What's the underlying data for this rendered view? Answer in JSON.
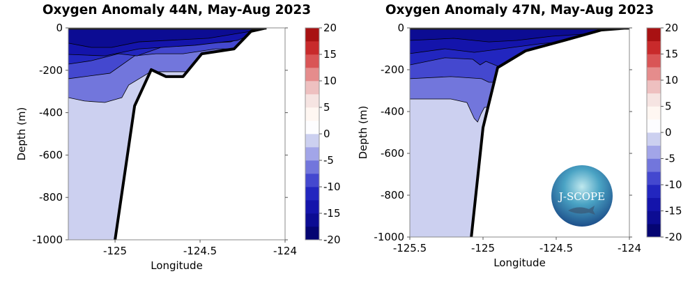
{
  "chart_data": [
    {
      "type": "contour",
      "title": "Oxygen Anomaly 44N, May-Aug 2023",
      "xlabel": "Longitude",
      "ylabel": "Depth (m)",
      "xlim": [
        -125.275,
        -124
      ],
      "ylim": [
        -1000,
        0
      ],
      "xticks": [
        -125,
        -124.5,
        -124
      ],
      "xtick_labels": [
        "-125",
        "-124.5",
        "-124"
      ],
      "yticks": [
        0,
        -200,
        -400,
        -600,
        -800,
        -1000
      ],
      "ytick_labels": [
        "0",
        "-200",
        "-400",
        "-600",
        "-800",
        "-1000"
      ],
      "bottom": [
        [
          -125.0,
          -1000
        ],
        [
          -124.885,
          -368
        ],
        [
          -124.787,
          -197
        ],
        [
          -124.7,
          -230
        ],
        [
          -124.6,
          -230
        ],
        [
          -124.49,
          -122
        ],
        [
          -124.3,
          -99
        ],
        [
          -124.2,
          -16
        ],
        [
          -124.11,
          0
        ]
      ],
      "bands": [
        {
          "range": [
            -5,
            -2.5
          ],
          "boundary": [
            [
              -125.275,
              -1000
            ],
            [
              -124.0,
              -1000
            ]
          ]
        },
        {
          "range": [
            -7.5,
            -5
          ],
          "boundary": [
            [
              -125.275,
              -329
            ],
            [
              -125.18,
              -345
            ],
            [
              -125.06,
              -352
            ],
            [
              -124.96,
              -329
            ],
            [
              -124.92,
              -270
            ],
            [
              -124.79,
              -207
            ],
            [
              -124.0,
              -207
            ]
          ]
        },
        {
          "range": [
            -10,
            -7.5
          ],
          "boundary": [
            [
              -125.275,
              -240
            ],
            [
              -125.03,
              -214
            ],
            [
              -124.885,
              -132
            ],
            [
              -124.76,
              -122
            ],
            [
              -124.6,
              -122
            ],
            [
              -124.49,
              -109
            ],
            [
              -124.41,
              -99
            ],
            [
              -124.0,
              -99
            ]
          ]
        },
        {
          "range": [
            -12.5,
            -10
          ],
          "boundary": [
            [
              -125.275,
              -171
            ],
            [
              -125.14,
              -155
            ],
            [
              -124.98,
              -122
            ],
            [
              -124.87,
              -132
            ],
            [
              -124.73,
              -92
            ],
            [
              -124.56,
              -76
            ],
            [
              -124.32,
              -66
            ],
            [
              -124.2,
              -33
            ],
            [
              -124.0,
              -33
            ]
          ]
        },
        {
          "range": [
            -15,
            -12.5
          ],
          "boundary": [
            [
              -125.275,
              -125
            ],
            [
              -125.06,
              -132
            ],
            [
              -124.86,
              -99
            ],
            [
              -124.53,
              -82
            ],
            [
              -124.28,
              -59
            ],
            [
              -124.16,
              -16
            ],
            [
              -124.0,
              -16
            ]
          ]
        },
        {
          "range": [
            -17.5,
            -15
          ],
          "boundary": [
            [
              -125.275,
              -72
            ],
            [
              -125.14,
              -92
            ],
            [
              -125.02,
              -92
            ],
            [
              -124.86,
              -66
            ],
            [
              -124.45,
              -49
            ],
            [
              -124.2,
              -16
            ],
            [
              -124.0,
              -16
            ]
          ]
        }
      ]
    },
    {
      "type": "contour",
      "title": "Oxygen Anomaly 47N, May-Aug 2023",
      "xlabel": "Longitude",
      "ylabel": "Depth (m)",
      "xlim": [
        -125.5,
        -124
      ],
      "ylim": [
        -1000,
        0
      ],
      "xticks": [
        -125.5,
        -125,
        -124.5,
        -124
      ],
      "xtick_labels": [
        "-125.5",
        "-125",
        "-124.5",
        "-124"
      ],
      "yticks": [
        0,
        -200,
        -400,
        -600,
        -800,
        -1000
      ],
      "ytick_labels": [
        "0",
        "-200",
        "-400",
        "-600",
        "-800",
        "-1000"
      ],
      "bottom": [
        [
          -125.08,
          -1000
        ],
        [
          -125.0,
          -477
        ],
        [
          -124.9,
          -190
        ],
        [
          -124.71,
          -110
        ],
        [
          -124.43,
          -57
        ],
        [
          -124.19,
          -10
        ],
        [
          -124.0,
          0
        ]
      ],
      "bands": [
        {
          "range": [
            -5,
            -2.5
          ],
          "boundary": [
            [
              -125.5,
              -1000
            ],
            [
              -124.0,
              -1000
            ]
          ]
        },
        {
          "range": [
            -7.5,
            -5
          ],
          "boundary": [
            [
              -125.5,
              -340
            ],
            [
              -125.22,
              -340
            ],
            [
              -125.11,
              -357
            ],
            [
              -125.06,
              -433
            ],
            [
              -125.037,
              -450
            ],
            [
              -125.013,
              -410
            ],
            [
              -124.99,
              -380
            ],
            [
              -124.0,
              -380
            ]
          ]
        },
        {
          "range": [
            -10,
            -7.5
          ],
          "boundary": [
            [
              -125.5,
              -243
            ],
            [
              -125.22,
              -233
            ],
            [
              -125.01,
              -243
            ],
            [
              -124.96,
              -260
            ],
            [
              -124.0,
              -260
            ]
          ]
        },
        {
          "range": [
            -12.5,
            -10
          ],
          "boundary": [
            [
              -125.5,
              -177
            ],
            [
              -125.26,
              -143
            ],
            [
              -125.07,
              -150
            ],
            [
              -125.02,
              -177
            ],
            [
              -124.98,
              -160
            ],
            [
              -124.9,
              -183
            ],
            [
              -124.0,
              -183
            ]
          ]
        },
        {
          "range": [
            -15,
            -12.5
          ],
          "boundary": [
            [
              -125.5,
              -123
            ],
            [
              -125.26,
              -100
            ],
            [
              -125.06,
              -117
            ],
            [
              -124.87,
              -100
            ],
            [
              -124.6,
              -75
            ],
            [
              -124.0,
              -40
            ]
          ]
        },
        {
          "range": [
            -17.5,
            -15
          ],
          "boundary": [
            [
              -125.5,
              -60
            ],
            [
              -125.2,
              -50
            ],
            [
              -124.96,
              -67
            ],
            [
              -124.77,
              -60
            ],
            [
              -124.53,
              -40
            ],
            [
              -124.0,
              -15
            ]
          ]
        }
      ]
    }
  ],
  "colorbar": {
    "levels": [
      -20,
      -17.5,
      -15,
      -12.5,
      -10,
      -7.5,
      -5,
      -2.5,
      0,
      2.5,
      5,
      7.5,
      10,
      12.5,
      15,
      17.5,
      20
    ],
    "colors": [
      "#050572",
      "#0c0c93",
      "#1414ab",
      "#2226bf",
      "#4448cf",
      "#7276dc",
      "#a2a5e8",
      "#ccd0f0",
      "#ebeff9",
      "#fdfdff",
      "#fff7f2",
      "#f6e4e2",
      "#eec0c0",
      "#e58c8c",
      "#d95556",
      "#c82a2b",
      "#a81112",
      "#7c0202"
    ],
    "tick_values": [
      20,
      15,
      10,
      5,
      0,
      -5,
      -10,
      -15,
      -20
    ],
    "tick_labels": [
      "20",
      "15",
      "10",
      "5",
      "0",
      "-5",
      "-10",
      "-15",
      "-20"
    ]
  },
  "logo": {
    "text": "J-SCOPE"
  }
}
